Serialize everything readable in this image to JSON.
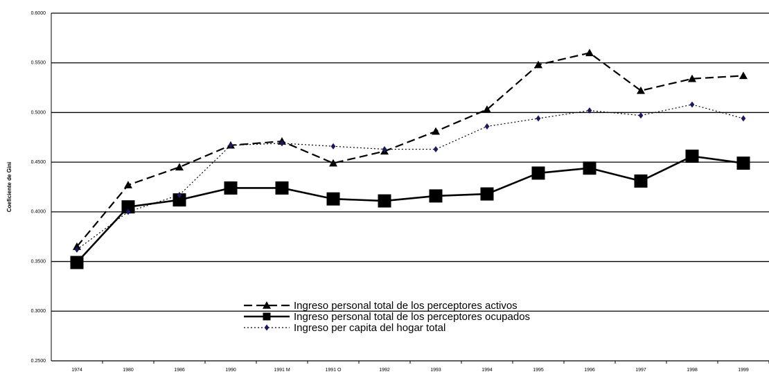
{
  "chart_data": {
    "type": "line",
    "y_label": "Coeficiente de Gini",
    "categories": [
      "1974",
      "1980",
      "1986",
      "1990",
      "1991 M",
      "1991 O",
      "1992",
      "1993",
      "1994",
      "1995",
      "1996",
      "1997",
      "1998",
      "1999"
    ],
    "series": [
      {
        "name": "Ingreso personal total de los perceptores activos",
        "color": "#000000",
        "marker": "triangle",
        "dash": "12,6",
        "width": 2.2,
        "values": [
          0.365,
          0.427,
          0.445,
          0.467,
          0.471,
          0.449,
          0.461,
          0.481,
          0.503,
          0.548,
          0.56,
          0.522,
          0.534,
          0.537
        ]
      },
      {
        "name": "Ingreso personal total de los perceptores ocupados",
        "color": "#000000",
        "marker": "square",
        "dash": "none",
        "width": 2.6,
        "values": [
          0.349,
          0.405,
          0.412,
          0.424,
          0.424,
          0.413,
          0.411,
          0.416,
          0.418,
          0.439,
          0.444,
          0.431,
          0.456,
          0.449
        ]
      },
      {
        "name": "Ingreso per capita del hogar total",
        "color": "#1a1a5e",
        "marker": "diamond",
        "dash": "2,3",
        "width": 1.2,
        "values": [
          0.362,
          0.4,
          0.417,
          0.467,
          0.469,
          0.466,
          0.463,
          0.463,
          0.486,
          0.494,
          0.502,
          0.497,
          0.508,
          0.494
        ]
      }
    ],
    "ylim": [
      0.25,
      0.6
    ],
    "yticks": [
      {
        "value": 0.25,
        "label": "0.2500"
      },
      {
        "value": 0.3,
        "label": "0.3000"
      },
      {
        "value": 0.35,
        "label": "0.3500"
      },
      {
        "value": 0.4,
        "label": "0.4000"
      },
      {
        "value": 0.45,
        "label": "0.4500"
      },
      {
        "value": 0.5,
        "label": "0.5000"
      },
      {
        "value": 0.55,
        "label": "0.5500"
      },
      {
        "value": 0.6,
        "label": "0.6000"
      }
    ],
    "grid": true
  }
}
